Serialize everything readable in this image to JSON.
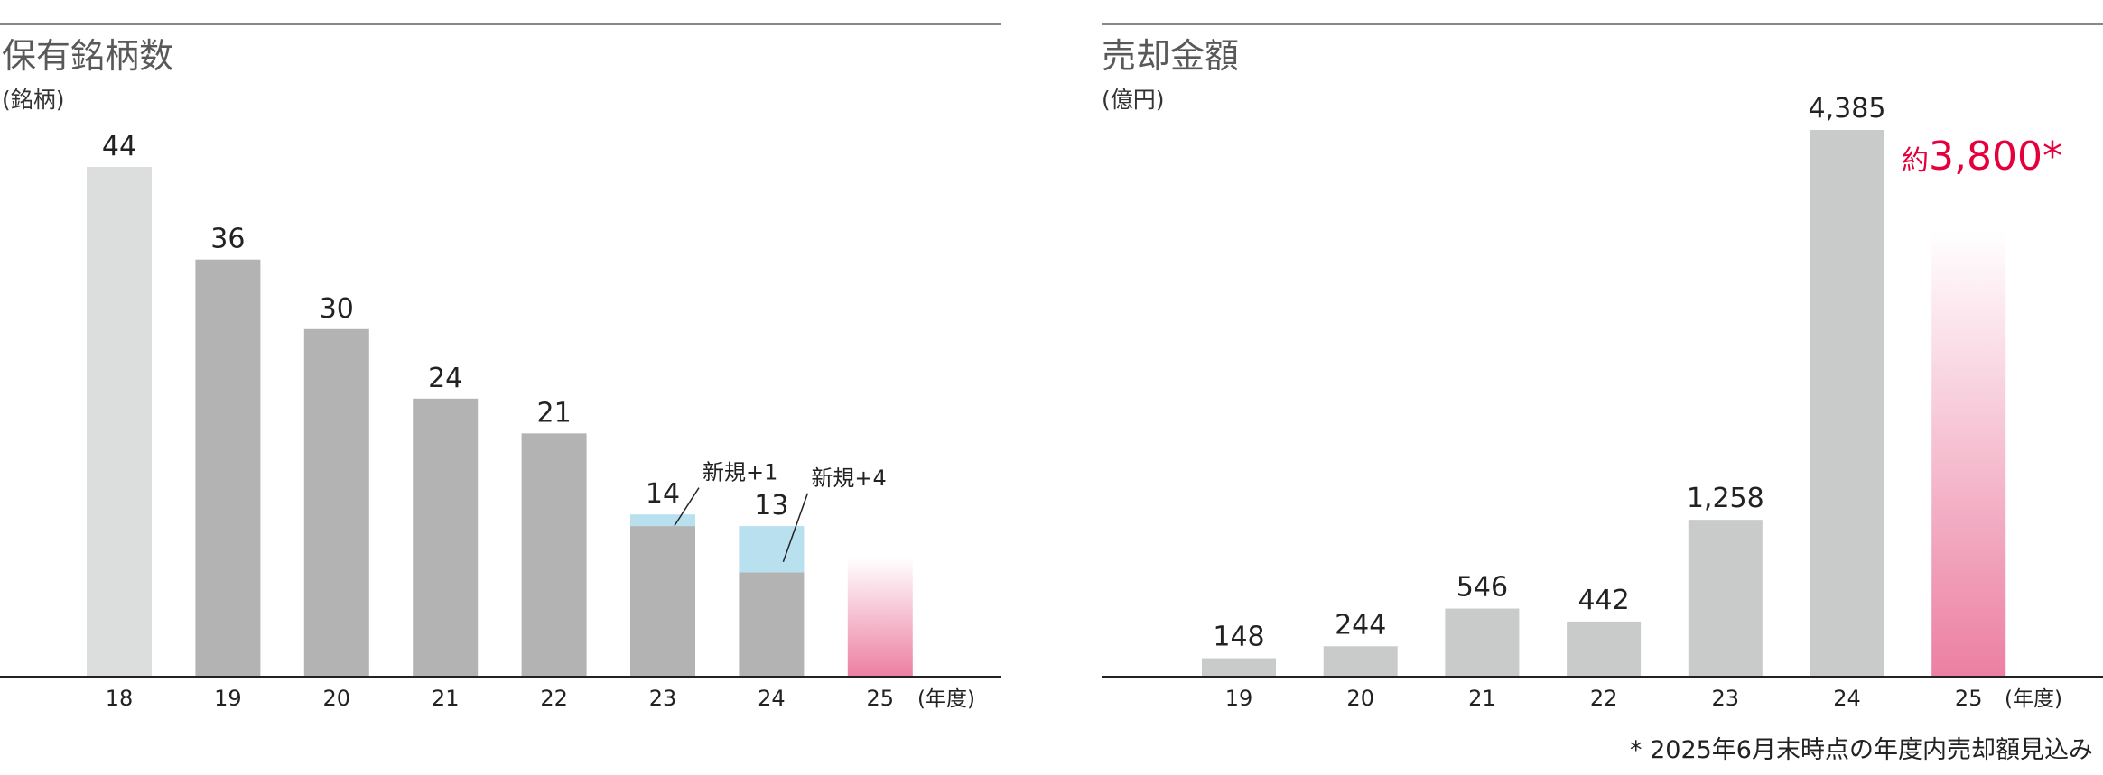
{
  "chart_data": [
    {
      "type": "bar",
      "title": "保有銘柄数",
      "unit": "(銘柄)",
      "xlabel": "(年度)",
      "categories": [
        "18",
        "19",
        "20",
        "21",
        "22",
        "23",
        "24",
        "25"
      ],
      "values": [
        44,
        36,
        30,
        24,
        21,
        14,
        13,
        null
      ],
      "value_labels": [
        "44",
        "36",
        "30",
        "24",
        "21",
        "14",
        "13",
        ""
      ],
      "new_additions": [
        null,
        null,
        null,
        null,
        null,
        1,
        4,
        null
      ],
      "annotations": [
        {
          "category": "23",
          "text": "新規+1"
        },
        {
          "category": "24",
          "text": "新規+4"
        }
      ],
      "ylim": [
        0,
        44
      ],
      "grid": false
    },
    {
      "type": "bar",
      "title": "売却金額",
      "unit": "(億円)",
      "xlabel": "(年度)",
      "categories": [
        "19",
        "20",
        "21",
        "22",
        "23",
        "24",
        "25"
      ],
      "values": [
        148,
        244,
        546,
        442,
        1258,
        4385,
        3800
      ],
      "value_labels": [
        "148",
        "244",
        "546",
        "442",
        "1,258",
        "4,385",
        "3,800*"
      ],
      "forecast_prefix": "約",
      "ylim": [
        0,
        4385
      ],
      "grid": false
    }
  ],
  "footnote": "* 2025年6月末時点の年度内売却額見込み",
  "colors": {
    "bar_grey": "#b3b3b3",
    "bar_light_grey": "#dcdddd",
    "bar_silver": "#c9caca",
    "new_addition_blue": "#b9e0ef",
    "forecast_pink": "#ec7fa2",
    "accent_red": "#e4003c",
    "rule_grey": "#888888",
    "text": "#222222",
    "title_grey": "#595959"
  }
}
